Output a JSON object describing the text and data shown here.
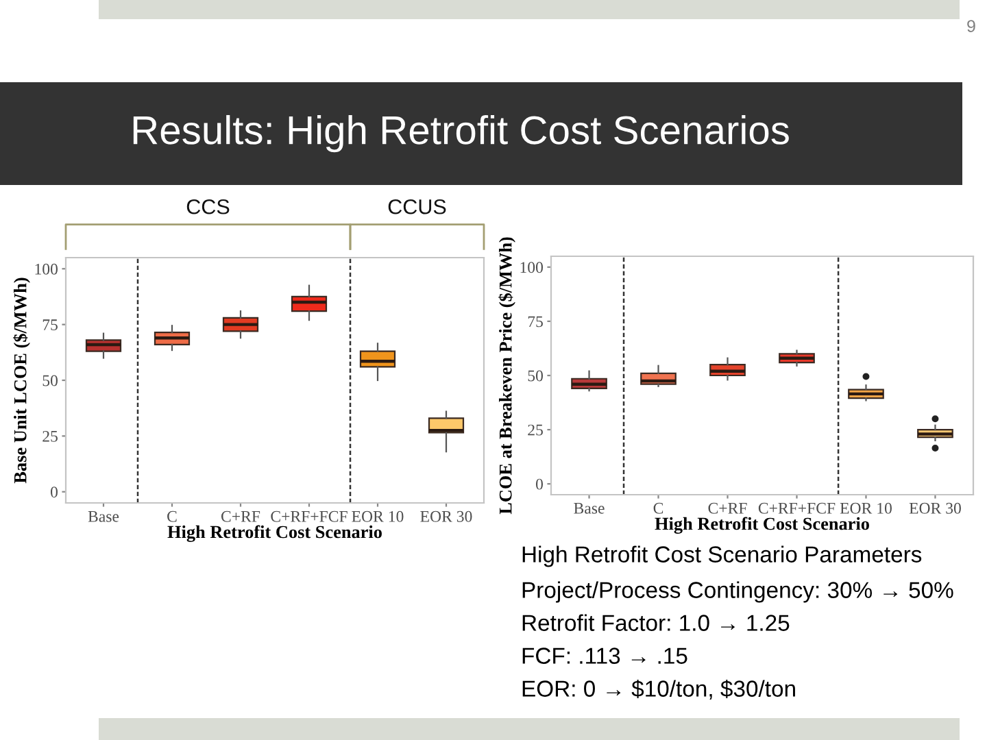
{
  "chart_data": [
    {
      "type": "other",
      "title": "Results: High Retrofit Cost Scenarios",
      "annotations": [
        "9"
      ]
    },
    {
      "type": "box",
      "xlabel": "High Retrofit Cost Scenario",
      "ylabel": "Base Unit LCOE ($/MWh)",
      "categories": [
        "Base",
        "C",
        "C+RF",
        "C+RF+FCF",
        "EOR 10",
        "EOR 30"
      ],
      "boxes": [
        {
          "low": 60,
          "q1": 63,
          "median": 66,
          "q3": 68,
          "high": 71
        },
        {
          "low": 63.5,
          "q1": 66,
          "median": 69,
          "q3": 71.5,
          "high": 74.5
        },
        {
          "low": 69,
          "q1": 72,
          "median": 75,
          "q3": 78,
          "high": 81
        },
        {
          "low": 77,
          "q1": 81,
          "median": 85,
          "q3": 87.5,
          "high": 92.5
        },
        {
          "low": 50,
          "q1": 56,
          "median": 58.5,
          "q3": 63,
          "high": 66.5
        },
        {
          "low": 18,
          "q1": 26.5,
          "median": 27.5,
          "q3": 33,
          "high": 36
        }
      ],
      "colors": [
        "#b8312f",
        "#ef6c47",
        "#e23b22",
        "#ee2b1c",
        "#f0941c",
        "#fdc86a"
      ],
      "ylim": [
        -5,
        105
      ],
      "yticks": [
        0,
        25,
        50,
        75,
        100
      ],
      "annotations": [
        "CCS",
        "CCUS"
      ]
    },
    {
      "type": "other",
      "title": "High Retrofit Cost Scenario Parameters",
      "annotations": [
        "Project/Process Contingency: 30% → 50%",
        "Retrofit Factor: 1.0 → 1.25",
        "FCF: .113 → .15",
        "EOR: 0 → $10/ton, $30/ton"
      ]
    },
    {
      "type": "box",
      "xlabel": "High Retrofit Cost Scenario",
      "ylabel": "LCOE at Breakeven Price ($/MWh)",
      "categories": [
        "Base",
        "C",
        "C+RF",
        "C+RF+FCF",
        "EOR 10",
        "EOR 30"
      ],
      "boxes": [
        {
          "low": 43,
          "q1": 44,
          "median": 46,
          "q3": 48.5,
          "high": 52
        },
        {
          "low": 45,
          "q1": 46,
          "median": 47.5,
          "q3": 51,
          "high": 54.5
        },
        {
          "low": 48,
          "q1": 50,
          "median": 52,
          "q3": 55,
          "high": 58
        },
        {
          "low": 54.5,
          "q1": 56,
          "median": 58,
          "q3": 60,
          "high": 61.5
        },
        {
          "low": 38.5,
          "q1": 39.5,
          "median": 41.5,
          "q3": 43.5,
          "high": 45.5,
          "outliers": [
            49.5
          ]
        },
        {
          "low": 20,
          "q1": 21.5,
          "median": 23,
          "q3": 25,
          "high": 27,
          "outliers": [
            30,
            16.5
          ]
        }
      ],
      "colors": [
        "#b8393a",
        "#f07350",
        "#e4432b",
        "#e8382a",
        "#f2a446",
        "#f8c772"
      ],
      "ylim": [
        -5,
        105
      ],
      "yticks": [
        0,
        25,
        50,
        75,
        100
      ]
    }
  ]
}
